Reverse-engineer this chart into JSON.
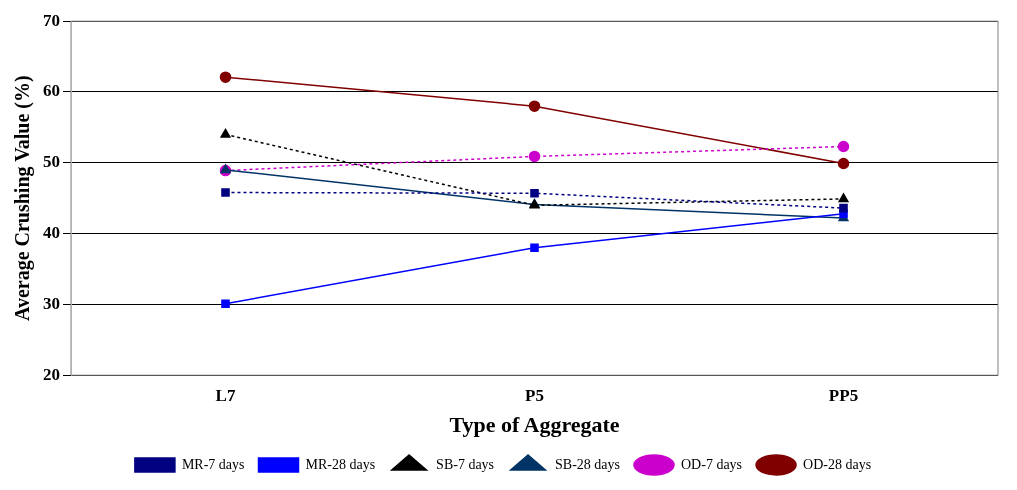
{
  "chart_data": {
    "type": "line",
    "xlabel": "Type of Aggregate",
    "ylabel": "Average Crushing Value (%)",
    "categories": [
      "L7",
      "P5",
      "PP5"
    ],
    "ylim": [
      20,
      70
    ],
    "yticks": [
      20,
      30,
      40,
      50,
      60,
      70
    ],
    "grid": "y",
    "legend": "bottom",
    "series": [
      {
        "name": "MR-7 days",
        "color": "#000080",
        "values": [
          45.8,
          45.7,
          43.6
        ],
        "marker": "square",
        "line_style": "dotted"
      },
      {
        "name": "MR-28 days",
        "color": "#0000ff",
        "values": [
          30.1,
          38,
          42.8
        ],
        "marker": "square",
        "line_style": "solid"
      },
      {
        "name": "SB-7 days",
        "color": "#000000",
        "values": [
          54,
          44,
          44.9
        ],
        "marker": "triangle",
        "line_style": "dotted"
      },
      {
        "name": "SB-28 days",
        "color": "#003366",
        "values": [
          49,
          44.1,
          42.2
        ],
        "marker": "triangle",
        "line_style": "solid"
      },
      {
        "name": "OD-7 days",
        "color": "#cc00cc",
        "values": [
          48.9,
          50.9,
          52.3
        ],
        "marker": "circle",
        "line_style": "dotted"
      },
      {
        "name": "OD-28 days",
        "color": "#800000",
        "values": [
          62.1,
          58,
          49.9
        ],
        "marker": "circle",
        "line_style": "solid"
      }
    ]
  }
}
